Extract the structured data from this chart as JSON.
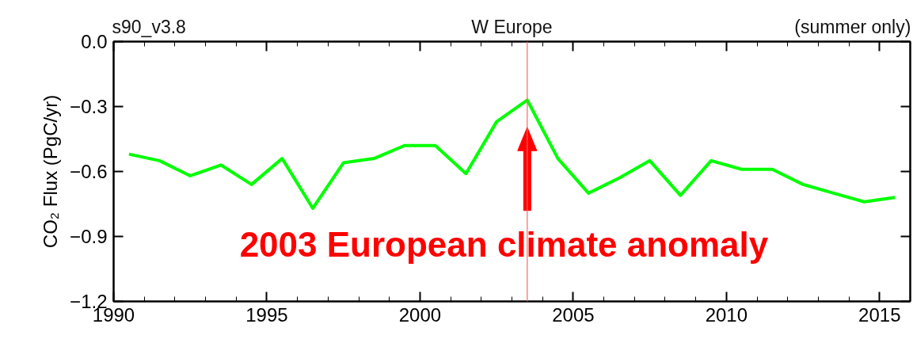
{
  "chart_data": {
    "type": "line",
    "title": "W Europe",
    "ylabel": "CO₂ Flux (PgC/yr)",
    "annotations": [
      "s90_v3.8",
      "(summer only)",
      "2003 European climate anomaly"
    ],
    "x": [
      1990.5,
      1991.5,
      1992.5,
      1993.5,
      1994.5,
      1995.5,
      1996.5,
      1997.5,
      1998.5,
      1999.5,
      2000.5,
      2001.5,
      2002.5,
      2003.5,
      2004.5,
      2005.5,
      2006.5,
      2007.5,
      2008.5,
      2009.5,
      2010.5,
      2011.5,
      2012.5,
      2013.5,
      2014.5,
      2015.5
    ],
    "series": [
      {
        "color": "#00ff00",
        "values": [
          -0.52,
          -0.55,
          -0.62,
          -0.57,
          -0.66,
          -0.54,
          -0.77,
          -0.56,
          -0.54,
          -0.48,
          -0.48,
          -0.61,
          -0.37,
          -0.27,
          -0.54,
          -0.7,
          -0.63,
          -0.55,
          -0.71,
          -0.55,
          -0.59,
          -0.59,
          -0.66,
          -0.7,
          -0.74,
          -0.72
        ]
      }
    ],
    "xlim": [
      1990,
      2016
    ],
    "xticks": [
      1990,
      1995,
      2000,
      2005,
      2010,
      2015
    ],
    "ylim": [
      -1.2,
      0
    ],
    "yticks": [
      {
        "value": 0,
        "label": "0.0"
      },
      -0.3,
      -0.6,
      -0.9,
      -1.2
    ],
    "ref_lines": [
      {
        "axis": "x",
        "value": 2003.5,
        "color": "#ff6666"
      }
    ],
    "grid": false,
    "legend": false,
    "marker": "none",
    "line_style": "solid"
  }
}
